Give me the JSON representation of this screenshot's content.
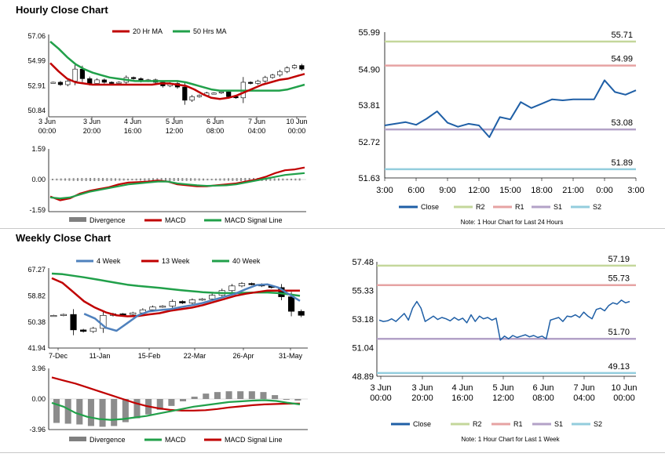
{
  "sections": {
    "hourly_title": "Hourly Close Chart",
    "weekly_title": "Weekly Close Chart"
  },
  "chart_data": [
    {
      "id": "hourly-price",
      "type": "candlestick",
      "legend": [
        "20 Hr MA",
        "50 Hrs MA"
      ],
      "yticks": [
        "57.06",
        "54.99",
        "52.91",
        "50.84"
      ],
      "ylim": [
        50.84,
        57.06
      ],
      "xticks": [
        [
          "3 Jun",
          "00:00"
        ],
        [
          "3 Jun",
          "20:00"
        ],
        [
          "4 Jun",
          "16:00"
        ],
        [
          "5 Jun",
          "12:00"
        ],
        [
          "6 Jun",
          "08:00"
        ],
        [
          "7 Jun",
          "04:00"
        ],
        [
          "10 Jun",
          "00:00"
        ]
      ],
      "ma20": [
        54.8,
        54.1,
        53.5,
        53.2,
        53.1,
        53.0,
        53.0,
        53.0,
        53.0,
        53.0,
        53.0,
        53.0,
        53.0,
        53.1,
        53.1,
        53.0,
        52.9,
        52.6,
        52.2,
        51.9,
        51.8,
        51.9,
        52.1,
        52.4,
        52.7,
        53.0,
        53.2,
        53.4,
        53.5,
        53.7,
        53.9
      ],
      "ma50": [
        56.6,
        56.0,
        55.3,
        54.7,
        54.3,
        54.0,
        53.8,
        53.6,
        53.5,
        53.4,
        53.3,
        53.3,
        53.3,
        53.3,
        53.3,
        53.3,
        53.2,
        53.0,
        52.8,
        52.6,
        52.5,
        52.5,
        52.5,
        52.5,
        52.5,
        52.5,
        52.5,
        52.5,
        52.6,
        52.8,
        53.0
      ],
      "closes": [
        53.2,
        53.0,
        53.3,
        54.3,
        53.5,
        53.1,
        53.4,
        53.2,
        53.1,
        53.2,
        53.6,
        53.5,
        53.3,
        53.4,
        53.2,
        52.9,
        53.1,
        52.8,
        51.7,
        52.0,
        52.1,
        52.3,
        52.3,
        52.4,
        52.0,
        51.9,
        53.2,
        53.1,
        53.3,
        53.6,
        53.8,
        54.1,
        54.4,
        54.6,
        54.3
      ]
    },
    {
      "id": "hourly-macd",
      "type": "line+bar",
      "legend": [
        "Divergence",
        "MACD",
        "MACD Signal Line"
      ],
      "yticks": [
        "1.59",
        "0.00",
        "-1.59"
      ],
      "ylim": [
        -1.59,
        1.59
      ],
      "macd": [
        -0.95,
        -1.15,
        -1.05,
        -0.8,
        -0.65,
        -0.55,
        -0.45,
        -0.3,
        -0.2,
        -0.18,
        -0.15,
        -0.1,
        -0.15,
        -0.3,
        -0.35,
        -0.4,
        -0.4,
        -0.35,
        -0.3,
        -0.25,
        -0.15,
        -0.05,
        0.1,
        0.3,
        0.45,
        0.5,
        0.6
      ],
      "signal": [
        -1.0,
        -1.05,
        -1.0,
        -0.85,
        -0.7,
        -0.6,
        -0.5,
        -0.4,
        -0.3,
        -0.25,
        -0.2,
        -0.15,
        -0.15,
        -0.25,
        -0.3,
        -0.35,
        -0.38,
        -0.37,
        -0.35,
        -0.3,
        -0.2,
        -0.1,
        0.0,
        0.1,
        0.2,
        0.25,
        0.3
      ]
    },
    {
      "id": "hourly-pivots",
      "type": "line",
      "yticks": [
        "55.99",
        "54.90",
        "53.81",
        "52.72",
        "51.63"
      ],
      "ylim": [
        51.63,
        55.99
      ],
      "xticks": [
        "3:00",
        "6:00",
        "9:00",
        "12:00",
        "15:00",
        "18:00",
        "21:00",
        "0:00",
        "3:00"
      ],
      "close": [
        53.2,
        53.25,
        53.3,
        53.22,
        53.4,
        53.62,
        53.28,
        53.16,
        53.25,
        53.2,
        52.85,
        53.45,
        53.38,
        53.9,
        53.72,
        53.85,
        53.98,
        53.95,
        53.98,
        53.98,
        53.98,
        54.55,
        54.2,
        54.12,
        54.25
      ],
      "levels": [
        {
          "name": "R2",
          "value": 55.71,
          "label": "55.71",
          "color": "#c4d79b"
        },
        {
          "name": "R1",
          "value": 54.99,
          "label": "54.99",
          "color": "#e6a3a3"
        },
        {
          "name": "S1",
          "value": 53.08,
          "label": "53.08",
          "color": "#b3a2c7"
        },
        {
          "name": "S2",
          "value": 51.89,
          "label": "51.89",
          "color": "#93cddd"
        }
      ],
      "legend": [
        "Close",
        "R2",
        "R1",
        "S1",
        "S2"
      ],
      "note": "Note: 1 Hour Chart for Last 24 Hours"
    },
    {
      "id": "weekly-price",
      "type": "candlestick",
      "legend": [
        "4 Week",
        "13 Week",
        "40 Week"
      ],
      "yticks": [
        "67.27",
        "58.82",
        "50.38",
        "41.94"
      ],
      "ylim": [
        41.94,
        67.27
      ],
      "xticks": [
        "7-Dec",
        "11-Jan",
        "15-Feb",
        "22-Mar",
        "26-Apr",
        "31-May"
      ],
      "w4": [
        null,
        null,
        null,
        53.0,
        51.5,
        48.5,
        47.5,
        50.0,
        52.5,
        53.8,
        54.2,
        54.5,
        55.2,
        55.8,
        56.5,
        57.5,
        58.5,
        59.5,
        61.0,
        62.3,
        62.5,
        61.5,
        59.3,
        57.2
      ],
      "w13": [
        64.5,
        63.0,
        60.0,
        57.0,
        55.0,
        53.5,
        52.5,
        52.2,
        52.3,
        52.8,
        53.2,
        54.0,
        54.5,
        55.0,
        55.8,
        56.8,
        57.8,
        58.8,
        59.5,
        60.0,
        60.5,
        60.5,
        60.5,
        60.5
      ],
      "w40": [
        66.0,
        65.8,
        65.3,
        64.8,
        64.2,
        63.6,
        63.0,
        62.4,
        62.0,
        61.7,
        61.4,
        61.0,
        60.6,
        60.3,
        60.0,
        59.8,
        59.7,
        59.7,
        59.8,
        59.9,
        59.9,
        59.7,
        59.3,
        58.8
      ],
      "closes": [
        52.5,
        52.8,
        47.8,
        47.3,
        48.3,
        52.5,
        53.0,
        52.8,
        53.3,
        54.3,
        55.2,
        55.5,
        57.0,
        56.5,
        57.5,
        57.8,
        59.0,
        60.5,
        62.0,
        62.8,
        62.5,
        62.0,
        61.5,
        58.5,
        53.8,
        52.5
      ]
    },
    {
      "id": "weekly-macd",
      "type": "line+bar",
      "legend": [
        "Divergence",
        "MACD",
        "MACD Signal Line"
      ],
      "yticks": [
        "3.96",
        "0.00",
        "-3.96"
      ],
      "ylim": [
        -3.96,
        3.96
      ],
      "macd": [
        -0.5,
        -1.0,
        -1.8,
        -2.3,
        -2.6,
        -2.7,
        -2.6,
        -2.4,
        -2.2,
        -1.9,
        -1.6,
        -1.3,
        -1.0,
        -0.8,
        -0.6,
        -0.4,
        -0.3,
        -0.2,
        -0.15,
        -0.25,
        -0.5,
        -0.7
      ],
      "signal": [
        2.8,
        2.4,
        2.0,
        1.5,
        1.0,
        0.5,
        0.0,
        -0.5,
        -0.9,
        -1.2,
        -1.4,
        -1.5,
        -1.5,
        -1.45,
        -1.3,
        -1.1,
        -0.95,
        -0.8,
        -0.7,
        -0.65,
        -0.6,
        -0.6
      ],
      "divergence": [
        -3.1,
        -3.2,
        -3.3,
        -3.5,
        -3.6,
        -3.5,
        -3.0,
        -2.5,
        -2.0,
        -1.4,
        -0.9,
        -0.3,
        0.3,
        0.7,
        0.9,
        1.0,
        1.0,
        1.0,
        0.9,
        0.5,
        0.0,
        -0.2
      ]
    },
    {
      "id": "weekly-pivots",
      "type": "line",
      "yticks": [
        "57.48",
        "55.33",
        "53.18",
        "51.04",
        "48.89"
      ],
      "ylim": [
        48.89,
        57.48
      ],
      "xticks": [
        [
          "3 Jun",
          "00:00"
        ],
        [
          "3 Jun",
          "20:00"
        ],
        [
          "4 Jun",
          "16:00"
        ],
        [
          "5 Jun",
          "12:00"
        ],
        [
          "6 Jun",
          "08:00"
        ],
        [
          "7 Jun",
          "04:00"
        ],
        [
          "10 Jun",
          "00:00"
        ]
      ],
      "close": [
        53.1,
        53.0,
        53.05,
        53.2,
        53.0,
        53.3,
        53.6,
        53.1,
        54.0,
        54.5,
        54.0,
        53.0,
        53.2,
        53.4,
        53.15,
        53.3,
        53.2,
        53.05,
        53.3,
        53.1,
        53.25,
        52.9,
        53.5,
        53.0,
        53.4,
        53.2,
        53.3,
        53.1,
        53.25,
        51.6,
        51.9,
        51.7,
        51.95,
        51.8,
        51.9,
        52.0,
        51.85,
        51.95,
        51.8,
        51.9,
        51.7,
        53.1,
        53.2,
        53.3,
        53.0,
        53.4,
        53.35,
        53.5,
        53.3,
        53.7,
        53.4,
        53.2,
        53.9,
        54.0,
        53.8,
        54.2,
        54.4,
        54.3,
        54.6,
        54.4,
        54.5
      ],
      "levels": [
        {
          "name": "R2",
          "value": 57.19,
          "label": "57.19",
          "color": "#c4d79b"
        },
        {
          "name": "R1",
          "value": 55.73,
          "label": "55.73",
          "color": "#e6a3a3"
        },
        {
          "name": "S1",
          "value": 51.7,
          "label": "51.70",
          "color": "#b3a2c7"
        },
        {
          "name": "S2",
          "value": 49.13,
          "label": "49.13",
          "color": "#93cddd"
        }
      ],
      "legend": [
        "Close",
        "R2",
        "R1",
        "S1",
        "S2"
      ],
      "note": "Note: 1 Hour Chart for Last 1 Week"
    }
  ],
  "colors": {
    "red": "#c00000",
    "green": "#21a04a",
    "blue": "#4f81bd",
    "close_blue": "#1f5fa6",
    "gray": "#808080"
  }
}
